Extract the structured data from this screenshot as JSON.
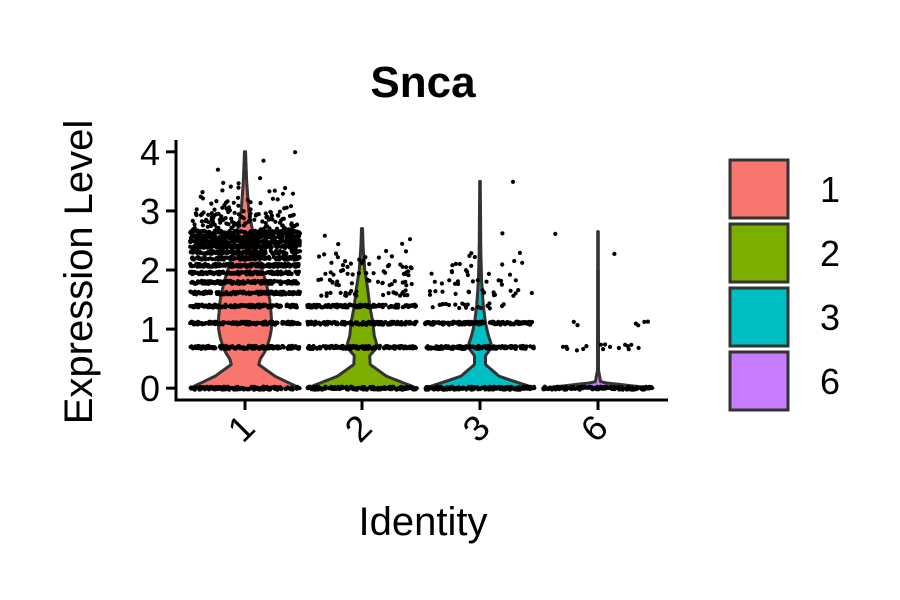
{
  "chart_data": {
    "type": "violin",
    "title": "Snca",
    "xlabel": "Identity",
    "ylabel": "Expression Level",
    "categories": [
      "1",
      "2",
      "3",
      "6"
    ],
    "yticks": [
      "0",
      "1",
      "2",
      "3",
      "4"
    ],
    "ylim": [
      -0.2,
      4.2
    ],
    "series": [
      {
        "name": "1",
        "color": "#F8766D",
        "max": 4.0,
        "density_profile": [
          [
            0.0,
            1.0
          ],
          [
            0.2,
            0.55
          ],
          [
            0.4,
            0.25
          ],
          [
            0.5,
            0.28
          ],
          [
            0.6,
            0.35
          ],
          [
            0.7,
            0.4
          ],
          [
            0.85,
            0.45
          ],
          [
            1.0,
            0.48
          ],
          [
            1.2,
            0.48
          ],
          [
            1.5,
            0.45
          ],
          [
            1.8,
            0.38
          ],
          [
            2.1,
            0.28
          ],
          [
            2.5,
            0.17
          ],
          [
            3.0,
            0.07
          ],
          [
            3.5,
            0.03
          ],
          [
            4.0,
            0.01
          ]
        ]
      },
      {
        "name": "2",
        "color": "#7CAE00",
        "max": 2.7,
        "density_profile": [
          [
            0.0,
            1.0
          ],
          [
            0.2,
            0.45
          ],
          [
            0.4,
            0.15
          ],
          [
            0.55,
            0.14
          ],
          [
            0.7,
            0.28
          ],
          [
            0.9,
            0.22
          ],
          [
            1.1,
            0.2
          ],
          [
            1.4,
            0.14
          ],
          [
            1.7,
            0.1
          ],
          [
            2.0,
            0.05
          ],
          [
            2.4,
            0.02
          ],
          [
            2.7,
            0.01
          ]
        ]
      },
      {
        "name": "3",
        "color": "#00BFC4",
        "max": 3.5,
        "density_profile": [
          [
            0.0,
            1.0
          ],
          [
            0.2,
            0.35
          ],
          [
            0.4,
            0.1
          ],
          [
            0.55,
            0.1
          ],
          [
            0.7,
            0.22
          ],
          [
            0.9,
            0.15
          ],
          [
            1.1,
            0.1
          ],
          [
            1.4,
            0.06
          ],
          [
            1.8,
            0.03
          ],
          [
            2.3,
            0.015
          ],
          [
            3.5,
            0.005
          ]
        ]
      },
      {
        "name": "6",
        "color": "#C77CFF",
        "max": 2.65,
        "density_profile": [
          [
            0.0,
            1.0
          ],
          [
            0.1,
            0.05
          ],
          [
            0.3,
            0.01
          ],
          [
            2.65,
            0.005
          ]
        ]
      }
    ],
    "points": [
      {
        "group": "1",
        "levels": [
          [
            0.0,
            0.95
          ],
          [
            0.69,
            0.95
          ],
          [
            1.1,
            0.95
          ],
          [
            1.39,
            0.95
          ],
          [
            1.61,
            0.95
          ],
          [
            1.79,
            0.95
          ],
          [
            1.95,
            0.95
          ],
          [
            2.08,
            0.95
          ],
          [
            2.2,
            0.95
          ],
          [
            2.3,
            0.95
          ],
          [
            2.4,
            0.95
          ],
          [
            2.48,
            0.9
          ],
          [
            2.56,
            0.9
          ],
          [
            2.64,
            0.9
          ],
          [
            2.71,
            0.85
          ],
          [
            2.77,
            0.8
          ],
          [
            2.83,
            0.75
          ],
          [
            2.89,
            0.7
          ],
          [
            2.94,
            0.6
          ],
          [
            3.0,
            0.5
          ],
          [
            3.1,
            0.4
          ],
          [
            3.2,
            0.3
          ],
          [
            3.3,
            0.2
          ],
          [
            3.4,
            0.12
          ],
          [
            3.5,
            0.08
          ],
          [
            3.6,
            0.05
          ],
          [
            3.7,
            0.03
          ],
          [
            3.85,
            0.02
          ],
          [
            4.0,
            0.01
          ]
        ]
      },
      {
        "group": "2",
        "levels": [
          [
            0.0,
            0.95
          ],
          [
            0.69,
            0.95
          ],
          [
            1.1,
            0.95
          ],
          [
            1.39,
            0.9
          ],
          [
            1.61,
            0.85
          ],
          [
            1.79,
            0.8
          ],
          [
            1.95,
            0.6
          ],
          [
            2.08,
            0.45
          ],
          [
            2.2,
            0.3
          ],
          [
            2.3,
            0.15
          ],
          [
            2.4,
            0.08
          ],
          [
            2.5,
            0.04
          ],
          [
            2.6,
            0.02
          ]
        ]
      },
      {
        "group": "3",
        "levels": [
          [
            0.0,
            0.95
          ],
          [
            0.69,
            0.95
          ],
          [
            1.1,
            0.9
          ],
          [
            1.39,
            0.7
          ],
          [
            1.61,
            0.6
          ],
          [
            1.79,
            0.45
          ],
          [
            1.95,
            0.3
          ],
          [
            2.08,
            0.2
          ],
          [
            2.2,
            0.12
          ],
          [
            2.3,
            0.08
          ],
          [
            2.6,
            0.04
          ],
          [
            3.5,
            0.01
          ]
        ]
      },
      {
        "group": "6",
        "levels": [
          [
            0.0,
            0.95
          ],
          [
            0.69,
            0.6
          ],
          [
            1.1,
            0.2
          ],
          [
            2.3,
            0.01
          ],
          [
            2.65,
            0.01
          ]
        ]
      }
    ],
    "legend": {
      "position": "right",
      "entries": [
        "1",
        "2",
        "3",
        "6"
      ]
    },
    "grid": false
  }
}
